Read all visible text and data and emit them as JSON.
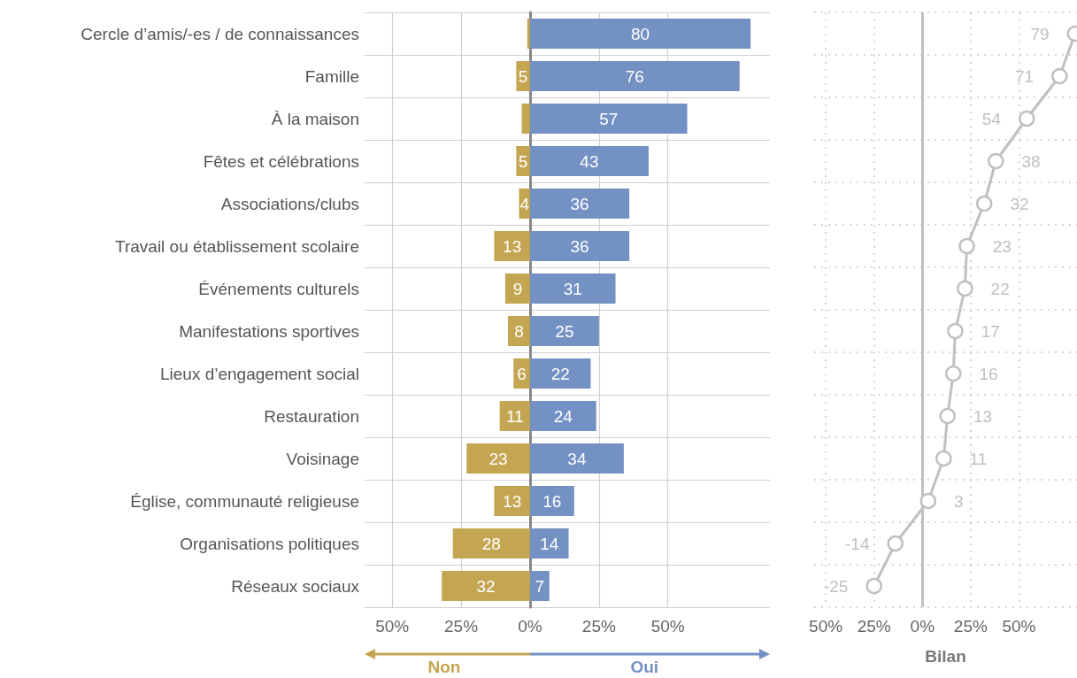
{
  "chart_data": [
    {
      "type": "bar",
      "orientation": "horizontal",
      "categories": [
        "Cercle d’amis/-es / de connaissances",
        "Famille",
        "À la maison",
        "Fêtes et célébrations",
        "Associations/clubs",
        "Travail ou établissement scolaire",
        "Événements culturels",
        "Manifestations sportives",
        "Lieux d’engagement social",
        "Restauration",
        "Voisinage",
        "Église, communauté religieuse",
        "Organisations politiques",
        "Réseaux sociaux"
      ],
      "series": [
        {
          "name": "Non",
          "color": "#c4a552",
          "base": [
            -1,
            -5,
            -3,
            -5,
            -4,
            -13,
            -9,
            -8,
            -6,
            -11,
            -23,
            -13,
            -28,
            -32
          ],
          "values": [
            1,
            5,
            3,
            5,
            4,
            13,
            9,
            8,
            6,
            11,
            23,
            13,
            28,
            32
          ],
          "value_labels": [
            null,
            "5",
            null,
            "5",
            "4",
            "13",
            "9",
            "8",
            "6",
            "11",
            "23",
            "13",
            "28",
            "32"
          ]
        },
        {
          "name": "Oui",
          "color": "#7391c3",
          "values": [
            80,
            76,
            57,
            43,
            36,
            36,
            31,
            25,
            22,
            24,
            34,
            16,
            14,
            7
          ],
          "value_labels": [
            "80",
            "76",
            "57",
            "43",
            "36",
            "36",
            "31",
            "25",
            "22",
            "24",
            "34",
            "16",
            "14",
            "7"
          ]
        }
      ],
      "xlim": [
        -60,
        87
      ],
      "xticks": [
        {
          "value": -50,
          "label": "50%"
        },
        {
          "value": -25,
          "label": "25%"
        },
        {
          "value": 0,
          "label": "0%"
        },
        {
          "value": 25,
          "label": "25%"
        },
        {
          "value": 50,
          "label": "50%"
        }
      ],
      "grid": true
    },
    {
      "type": "line",
      "orientation": "horizontal",
      "xlabel": "Bilan",
      "categories": [
        null,
        null,
        null,
        null,
        null,
        null,
        null,
        null,
        null,
        null,
        null,
        null,
        null,
        null
      ],
      "series": [
        {
          "color": "#c0c0c0",
          "values": [
            79,
            71,
            54,
            38,
            32,
            23,
            22,
            17,
            16,
            13,
            11,
            3,
            -14,
            -25
          ]
        }
      ],
      "xlim": [
        -56,
        80
      ],
      "xticks": [
        {
          "value": -50,
          "label": "50%"
        },
        {
          "value": -25,
          "label": "25%"
        },
        {
          "value": 0,
          "label": "0%"
        },
        {
          "value": 25,
          "label": "25%"
        },
        {
          "value": 50,
          "label": "50%"
        }
      ],
      "ref_lines": [
        {
          "axis": "x",
          "value": 0,
          "color": "#c0c0c0"
        }
      ],
      "grid": true,
      "marker": "circle",
      "data_labels": true,
      "tick_labels": "x"
    }
  ]
}
